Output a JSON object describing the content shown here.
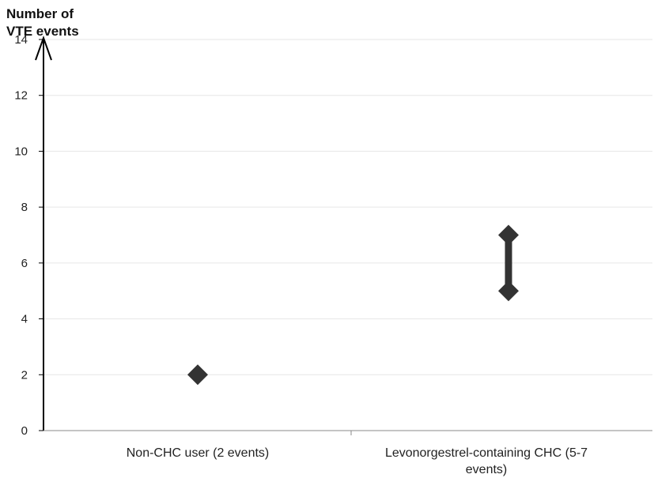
{
  "chart_data": {
    "type": "scatter",
    "title": "",
    "xlabel": "",
    "ylabel_lines": [
      "Number of",
      "VTE events"
    ],
    "ylim": [
      0,
      14
    ],
    "yticks": [
      0,
      2,
      4,
      6,
      8,
      10,
      12,
      14
    ],
    "grid": true,
    "categories": [
      {
        "label_lines": [
          "Non-CHC user (2 events)"
        ],
        "value": 2
      },
      {
        "label_lines": [
          "Levonorgestrel-containing CHC (5-7",
          "events)"
        ],
        "range": [
          5,
          7
        ]
      }
    ],
    "colors": {
      "marker": "#333333",
      "axis": "#000000",
      "grid": "#e6e6e6"
    }
  }
}
